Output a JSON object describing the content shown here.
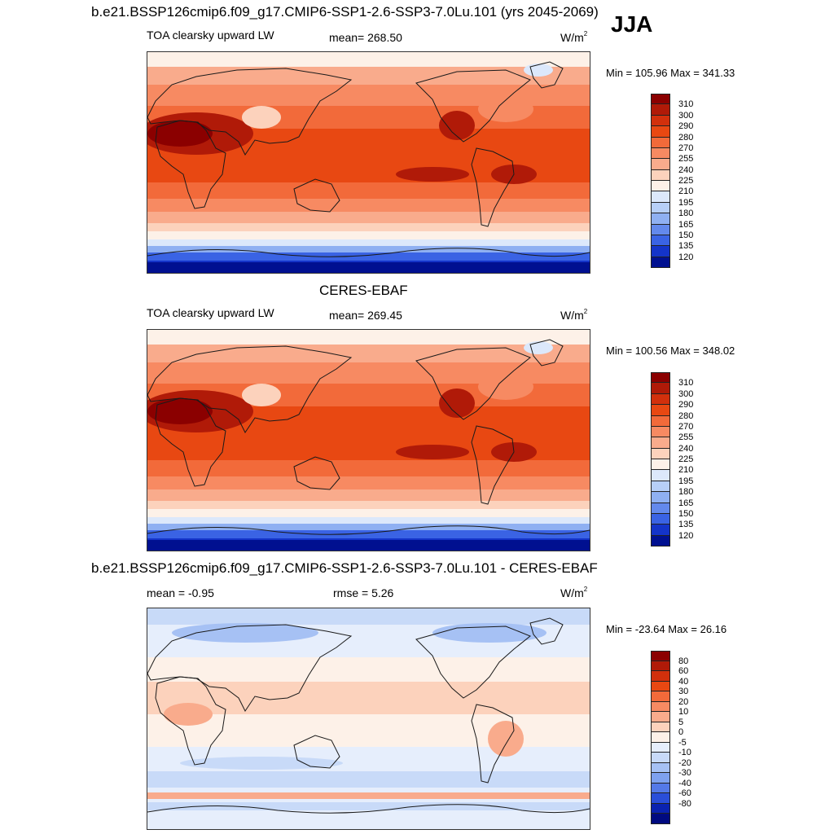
{
  "season": "JJA",
  "panels": [
    {
      "title": "b.e21.BSSP126cmip6.f09_g17.CMIP6-SSP1-2.6-SSP3-7.0Lu.101 (yrs 2045-2069)",
      "variable": "TOA clearsky upward LW",
      "mean_text": "mean= 268.50",
      "units_base": "W/m",
      "units_sup": "2",
      "minmax_text": "Min = 105.96 Max = 341.33",
      "colorbar_ticks": [
        "310",
        "300",
        "290",
        "280",
        "270",
        "255",
        "240",
        "225",
        "210",
        "195",
        "180",
        "165",
        "150",
        "135",
        "120"
      ]
    },
    {
      "title": "CERES-EBAF",
      "variable": "TOA clearsky upward LW",
      "mean_text": "mean= 269.45",
      "units_base": "W/m",
      "units_sup": "2",
      "minmax_text": "Min = 100.56 Max = 348.02",
      "colorbar_ticks": [
        "310",
        "300",
        "290",
        "280",
        "270",
        "255",
        "240",
        "225",
        "210",
        "195",
        "180",
        "165",
        "150",
        "135",
        "120"
      ]
    },
    {
      "title": "b.e21.BSSP126cmip6.f09_g17.CMIP6-SSP1-2.6-SSP3-7.0Lu.101 - CERES-EBAF",
      "mean_text": "mean =  -0.95",
      "rmse_text": "rmse =   5.26",
      "units_base": "W/m",
      "units_sup": "2",
      "minmax_text": "Min = -23.64 Max =  26.16",
      "colorbar_ticks": [
        "80",
        "60",
        "40",
        "30",
        "20",
        "10",
        "5",
        "0",
        "-5",
        "-10",
        "-20",
        "-30",
        "-40",
        "-60",
        "-80"
      ]
    }
  ],
  "colors": {
    "abs_scale": [
      "#8b0000",
      "#b01a08",
      "#d2300c",
      "#e84812",
      "#f26a3a",
      "#f78a62",
      "#f9ab8c",
      "#fcd2bc",
      "#fdf1e8",
      "#dce8fb",
      "#b7cff7",
      "#8fb0f2",
      "#6389ec",
      "#3a63e4",
      "#1434c9",
      "#001090"
    ],
    "diff_scale": [
      "#8b0000",
      "#b01a08",
      "#d2300c",
      "#e84812",
      "#f26a3a",
      "#f78a62",
      "#f9ab8c",
      "#fcd2bc",
      "#fdf1e8",
      "#e6eefc",
      "#c8daf8",
      "#a6c1f4",
      "#7ea1ef",
      "#5479e7",
      "#2a4ed9",
      "#0a22b0",
      "#000a80"
    ],
    "coastline": "#1a1a1a",
    "ocean_equatorial_model": "#e8450f",
    "ocean_equatorial_obs": "#e8450f"
  }
}
